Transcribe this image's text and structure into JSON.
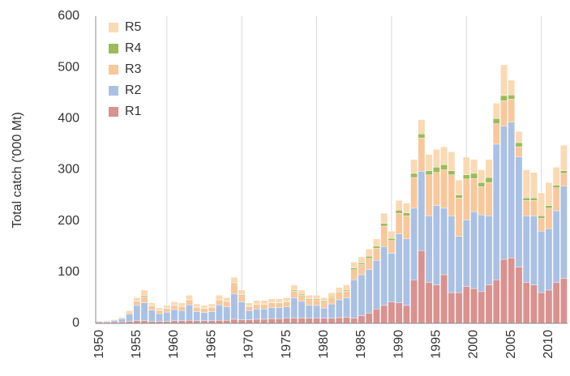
{
  "chart_data": {
    "type": "stacked_bar",
    "y_label": "Total catch ('000 Mt)",
    "categories": [
      "1950",
      null,
      null,
      null,
      null,
      "1955",
      null,
      null,
      null,
      null,
      "1960",
      null,
      null,
      null,
      null,
      "1965",
      null,
      null,
      null,
      null,
      "1970",
      null,
      null,
      null,
      null,
      "1975",
      null,
      null,
      null,
      null,
      "1980",
      null,
      null,
      null,
      null,
      "1985",
      null,
      null,
      null,
      null,
      "1990",
      null,
      null,
      null,
      null,
      "1995",
      null,
      null,
      null,
      null,
      "2000",
      null,
      null,
      null,
      null,
      "2005",
      null,
      null,
      null,
      null,
      "2010",
      null,
      null
    ],
    "series": [
      {
        "name": "R1",
        "color": "#d9928f",
        "values": [
          2,
          2,
          3,
          3,
          4,
          5,
          5,
          4,
          4,
          4,
          5,
          5,
          6,
          5,
          5,
          5,
          6,
          6,
          8,
          7,
          7,
          8,
          8,
          9,
          9,
          10,
          10,
          10,
          10,
          10,
          10,
          10,
          11,
          12,
          10,
          15,
          20,
          28,
          35,
          42,
          40,
          35,
          85,
          142,
          80,
          75,
          95,
          60,
          60,
          72,
          68,
          62,
          75,
          85,
          125,
          128,
          110,
          80,
          75,
          60,
          65,
          80,
          88
        ]
      },
      {
        "name": "R2",
        "color": "#aac1e4",
        "values": [
          2,
          2,
          3,
          6,
          14,
          30,
          35,
          22,
          15,
          18,
          22,
          20,
          30,
          18,
          16,
          18,
          30,
          26,
          50,
          35,
          18,
          20,
          20,
          22,
          22,
          22,
          40,
          33,
          25,
          25,
          20,
          28,
          35,
          38,
          75,
          80,
          85,
          95,
          115,
          95,
          135,
          130,
          140,
          155,
          130,
          155,
          130,
          150,
          110,
          130,
          150,
          150,
          135,
          265,
          260,
          265,
          215,
          130,
          135,
          120,
          120,
          140,
          180
        ]
      },
      {
        "name": "R3",
        "color": "#f8c79a",
        "values": [
          1,
          1,
          1,
          2,
          4,
          8,
          12,
          8,
          6,
          7,
          8,
          8,
          10,
          8,
          8,
          8,
          10,
          10,
          18,
          12,
          8,
          9,
          9,
          9,
          9,
          10,
          13,
          12,
          11,
          11,
          11,
          12,
          13,
          13,
          20,
          20,
          22,
          24,
          40,
          25,
          40,
          45,
          60,
          65,
          80,
          65,
          75,
          80,
          75,
          80,
          65,
          55,
          65,
          40,
          50,
          45,
          20,
          30,
          30,
          25,
          40,
          45,
          25
        ]
      },
      {
        "name": "R4",
        "color": "#9bbb59",
        "values": [
          0,
          0,
          0,
          0,
          0,
          1,
          2,
          1,
          1,
          1,
          1,
          1,
          1,
          1,
          1,
          1,
          1,
          1,
          2,
          2,
          1,
          1,
          1,
          1,
          1,
          1,
          2,
          2,
          2,
          2,
          2,
          2,
          2,
          2,
          3,
          3,
          4,
          4,
          5,
          4,
          6,
          6,
          8,
          8,
          8,
          10,
          10,
          8,
          6,
          8,
          10,
          8,
          10,
          10,
          10,
          8,
          8,
          5,
          5,
          5,
          5,
          5,
          5
        ]
      },
      {
        "name": "R5",
        "color": "#fad9b3",
        "values": [
          0,
          0,
          1,
          1,
          3,
          6,
          11,
          5,
          4,
          5,
          6,
          6,
          8,
          6,
          5,
          6,
          8,
          7,
          12,
          9,
          6,
          7,
          7,
          7,
          7,
          7,
          10,
          8,
          7,
          7,
          7,
          8,
          9,
          10,
          12,
          12,
          14,
          14,
          20,
          14,
          19,
          19,
          27,
          28,
          32,
          35,
          35,
          37,
          29,
          35,
          27,
          25,
          35,
          30,
          60,
          29,
          22,
          55,
          50,
          45,
          45,
          35,
          50
        ]
      }
    ],
    "ylim": [
      0,
      600
    ],
    "yticks": [
      0,
      100,
      200,
      300,
      400,
      500,
      600
    ],
    "grid": true,
    "legend": "top-left"
  }
}
